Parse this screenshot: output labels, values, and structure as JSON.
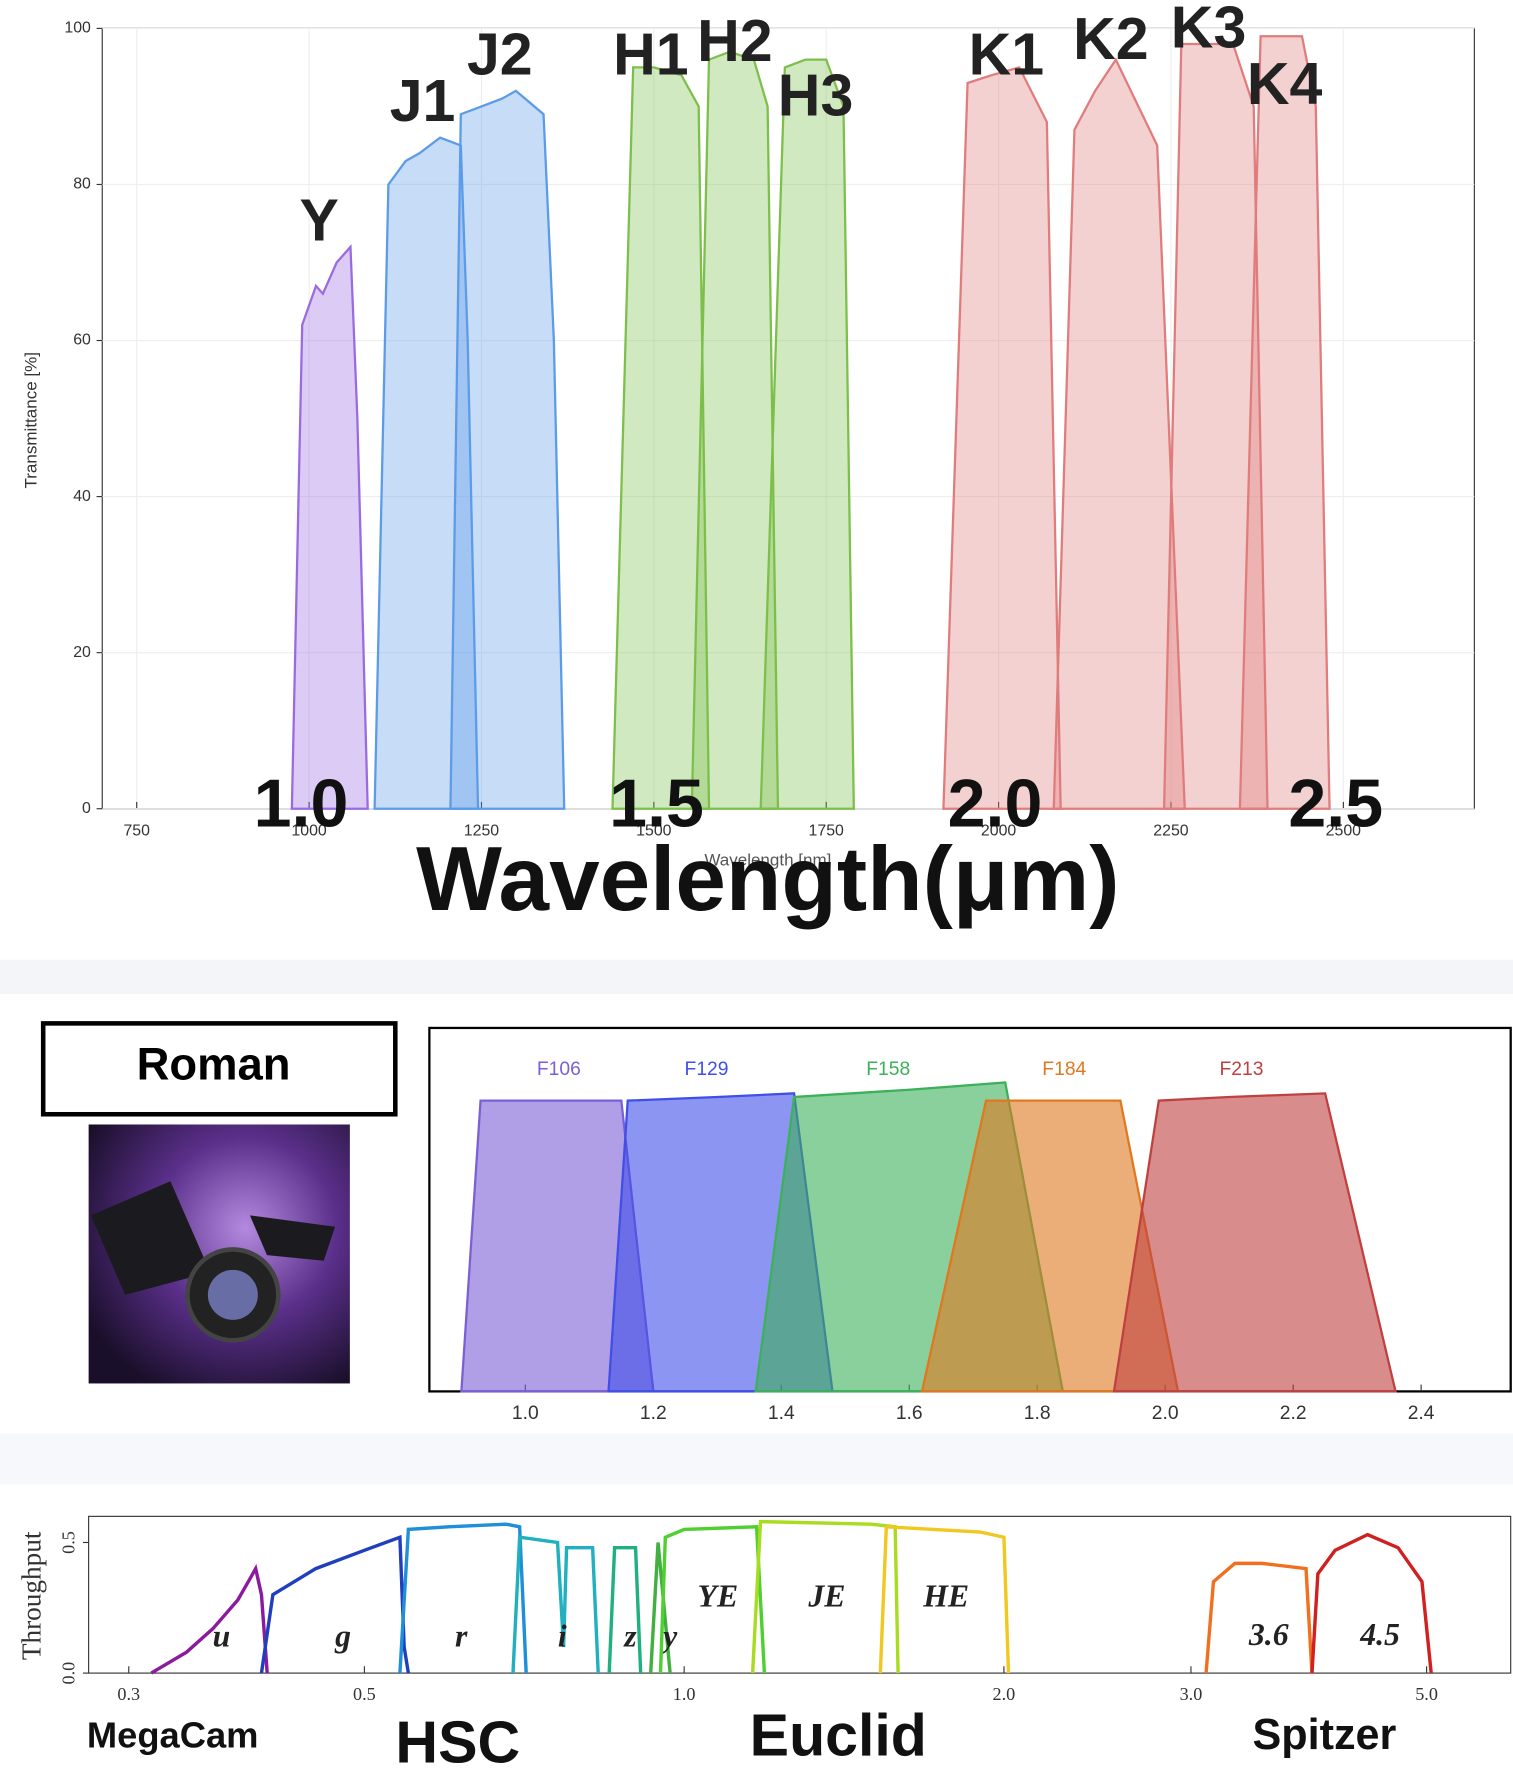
{
  "chart_data": [
    {
      "type": "area",
      "y_label": "Transmittance [%]",
      "x_label": "Wavelength [nm]",
      "xlim": [
        700,
        2690
      ],
      "ylim": [
        0,
        100
      ],
      "xticks": [
        750,
        1000,
        1250,
        1500,
        1750,
        2000,
        2250,
        2500
      ],
      "yticks": [
        0,
        20,
        40,
        60,
        80,
        100
      ],
      "grid": true,
      "annotations": [
        "1.0",
        "1.5",
        "2.0",
        "2.5",
        "Wavelength(μm)"
      ],
      "series": [
        {
          "name": "Y",
          "color": "#9a6be0",
          "x": [
            975,
            990,
            1010,
            1020,
            1040,
            1060,
            1070,
            1085
          ],
          "values": [
            0,
            62,
            67,
            66,
            70,
            72,
            50,
            0
          ]
        },
        {
          "name": "J1",
          "color": "#5b9be8",
          "x": [
            1095,
            1115,
            1140,
            1160,
            1190,
            1220,
            1230,
            1245
          ],
          "values": [
            0,
            80,
            83,
            84,
            86,
            85,
            60,
            0
          ]
        },
        {
          "name": "J2",
          "color": "#5b9be8",
          "x": [
            1205,
            1220,
            1250,
            1280,
            1300,
            1340,
            1355,
            1370
          ],
          "values": [
            0,
            89,
            90,
            91,
            92,
            89,
            60,
            0
          ]
        },
        {
          "name": "H1",
          "color": "#7cbf4a",
          "x": [
            1440,
            1470,
            1500,
            1540,
            1565,
            1580
          ],
          "values": [
            0,
            95,
            95,
            94,
            90,
            0
          ]
        },
        {
          "name": "H2",
          "color": "#7cbf4a",
          "x": [
            1555,
            1580,
            1610,
            1645,
            1665,
            1680
          ],
          "values": [
            0,
            96,
            97,
            96,
            90,
            0
          ]
        },
        {
          "name": "H3",
          "color": "#7cbf4a",
          "x": [
            1655,
            1690,
            1720,
            1750,
            1775,
            1790
          ],
          "values": [
            0,
            95,
            96,
            96,
            90,
            0
          ]
        },
        {
          "name": "K1",
          "color": "#e07c7c",
          "x": [
            1920,
            1955,
            1990,
            2030,
            2070,
            2090
          ],
          "values": [
            0,
            93,
            94,
            95,
            88,
            0
          ]
        },
        {
          "name": "K2",
          "color": "#e07c7c",
          "x": [
            2080,
            2110,
            2140,
            2170,
            2230,
            2270
          ],
          "values": [
            0,
            87,
            92,
            96,
            85,
            0
          ]
        },
        {
          "name": "K3",
          "color": "#e07c7c",
          "x": [
            2240,
            2265,
            2300,
            2340,
            2370,
            2390
          ],
          "values": [
            0,
            98,
            98,
            98,
            90,
            0
          ]
        },
        {
          "name": "K4",
          "color": "#e07c7c",
          "x": [
            2350,
            2380,
            2410,
            2440,
            2460,
            2480
          ],
          "values": [
            0,
            99,
            99,
            99,
            90,
            0
          ]
        }
      ]
    },
    {
      "type": "area",
      "title": "Roman",
      "xlim": [
        0.85,
        2.54
      ],
      "ylim": [
        0,
        1
      ],
      "xticks": [
        {
          "value": 1.0,
          "label": "1.0"
        },
        1.2,
        1.4,
        1.6,
        1.8,
        {
          "value": 2.0,
          "label": "2.0"
        },
        2.2,
        2.4
      ],
      "grid": false,
      "series": [
        {
          "name": "F106",
          "color": "#7b5fd6",
          "x": [
            0.9,
            0.93,
            1.05,
            1.15,
            1.2
          ],
          "values": [
            0,
            0.8,
            0.8,
            0.8,
            0
          ]
        },
        {
          "name": "F129",
          "color": "#3f4fe8",
          "x": [
            1.13,
            1.16,
            1.3,
            1.42,
            1.48
          ],
          "values": [
            0,
            0.8,
            0.81,
            0.82,
            0
          ]
        },
        {
          "name": "F158",
          "color": "#3cb05a",
          "x": [
            1.36,
            1.42,
            1.6,
            1.75,
            1.84
          ],
          "values": [
            0,
            0.81,
            0.83,
            0.85,
            0
          ]
        },
        {
          "name": "F184",
          "color": "#e07820",
          "x": [
            1.62,
            1.72,
            1.85,
            1.93,
            2.02
          ],
          "values": [
            0,
            0.8,
            0.8,
            0.8,
            0
          ]
        },
        {
          "name": "F213",
          "color": "#c04040",
          "x": [
            1.92,
            1.99,
            2.1,
            2.25,
            2.36
          ],
          "values": [
            0,
            0.8,
            0.81,
            0.82,
            0
          ]
        }
      ]
    },
    {
      "type": "line",
      "y_label": "Throughput",
      "xscale": "log",
      "xlim": [
        0.275,
        6
      ],
      "ylim": [
        0,
        0.6
      ],
      "xticks": [
        0.3,
        0.5,
        {
          "value": 1,
          "label": "1.0"
        },
        {
          "value": 2,
          "label": "2.0"
        },
        {
          "value": 3,
          "label": "3.0"
        },
        {
          "value": 5,
          "label": "5.0"
        }
      ],
      "yticks": [
        {
          "value": 0,
          "label": "0.0"
        },
        0.5
      ],
      "grid": false,
      "annotations": [
        "MegaCam",
        "HSC",
        "Euclid",
        "Spitzer"
      ],
      "series": [
        {
          "name": "u",
          "color": "#8b1a9e",
          "x": [
            0.315,
            0.34,
            0.36,
            0.38,
            0.39,
            0.395,
            0.4,
            0.405
          ],
          "values": [
            0,
            0.08,
            0.17,
            0.28,
            0.36,
            0.4,
            0.3,
            0
          ]
        },
        {
          "name": "g",
          "color": "#1f3fbf",
          "x": [
            0.4,
            0.41,
            0.45,
            0.5,
            0.54,
            0.545,
            0.55
          ],
          "values": [
            0,
            0.3,
            0.4,
            0.47,
            0.52,
            0.1,
            0
          ]
        },
        {
          "name": "r",
          "color": "#1e8fd8",
          "x": [
            0.54,
            0.55,
            0.6,
            0.68,
            0.7,
            0.71
          ],
          "values": [
            0,
            0.55,
            0.56,
            0.57,
            0.56,
            0
          ]
        },
        {
          "name": "i",
          "color": "#20b0c0",
          "x": [
            0.69,
            0.7,
            0.76,
            0.77,
            0.775,
            0.82,
            0.83
          ],
          "values": [
            0,
            0.52,
            0.5,
            0.1,
            0.48,
            0.48,
            0
          ]
        },
        {
          "name": "z",
          "color": "#20b080",
          "x": [
            0.85,
            0.86,
            0.9,
            0.91
          ],
          "values": [
            0,
            0.48,
            0.48,
            0
          ]
        },
        {
          "name": "y",
          "color": "#40b040",
          "x": [
            0.93,
            0.945,
            0.96,
            0.97
          ],
          "values": [
            0,
            0.5,
            0.2,
            0
          ]
        },
        {
          "name": "YE",
          "color": "#50d030",
          "x": [
            0.95,
            0.96,
            1.0,
            1.17,
            1.19
          ],
          "values": [
            0,
            0.52,
            0.55,
            0.56,
            0
          ]
        },
        {
          "name": "JE",
          "color": "#a8dc20",
          "x": [
            1.16,
            1.18,
            1.5,
            1.58,
            1.59
          ],
          "values": [
            0,
            0.58,
            0.57,
            0.56,
            0
          ]
        },
        {
          "name": "HE",
          "color": "#f0c820",
          "x": [
            1.53,
            1.55,
            1.9,
            2.0,
            2.02
          ],
          "values": [
            0,
            0.56,
            0.54,
            0.52,
            0
          ]
        },
        {
          "name": "3.6",
          "color": "#f07020",
          "x": [
            3.1,
            3.15,
            3.3,
            3.5,
            3.85,
            3.9
          ],
          "values": [
            0,
            0.35,
            0.42,
            0.42,
            0.4,
            0
          ]
        },
        {
          "name": "4.5",
          "color": "#d02020",
          "x": [
            3.9,
            3.95,
            4.1,
            4.4,
            4.7,
            4.95,
            5.05
          ],
          "values": [
            0,
            0.38,
            0.47,
            0.53,
            0.48,
            0.35,
            0
          ]
        }
      ]
    }
  ]
}
